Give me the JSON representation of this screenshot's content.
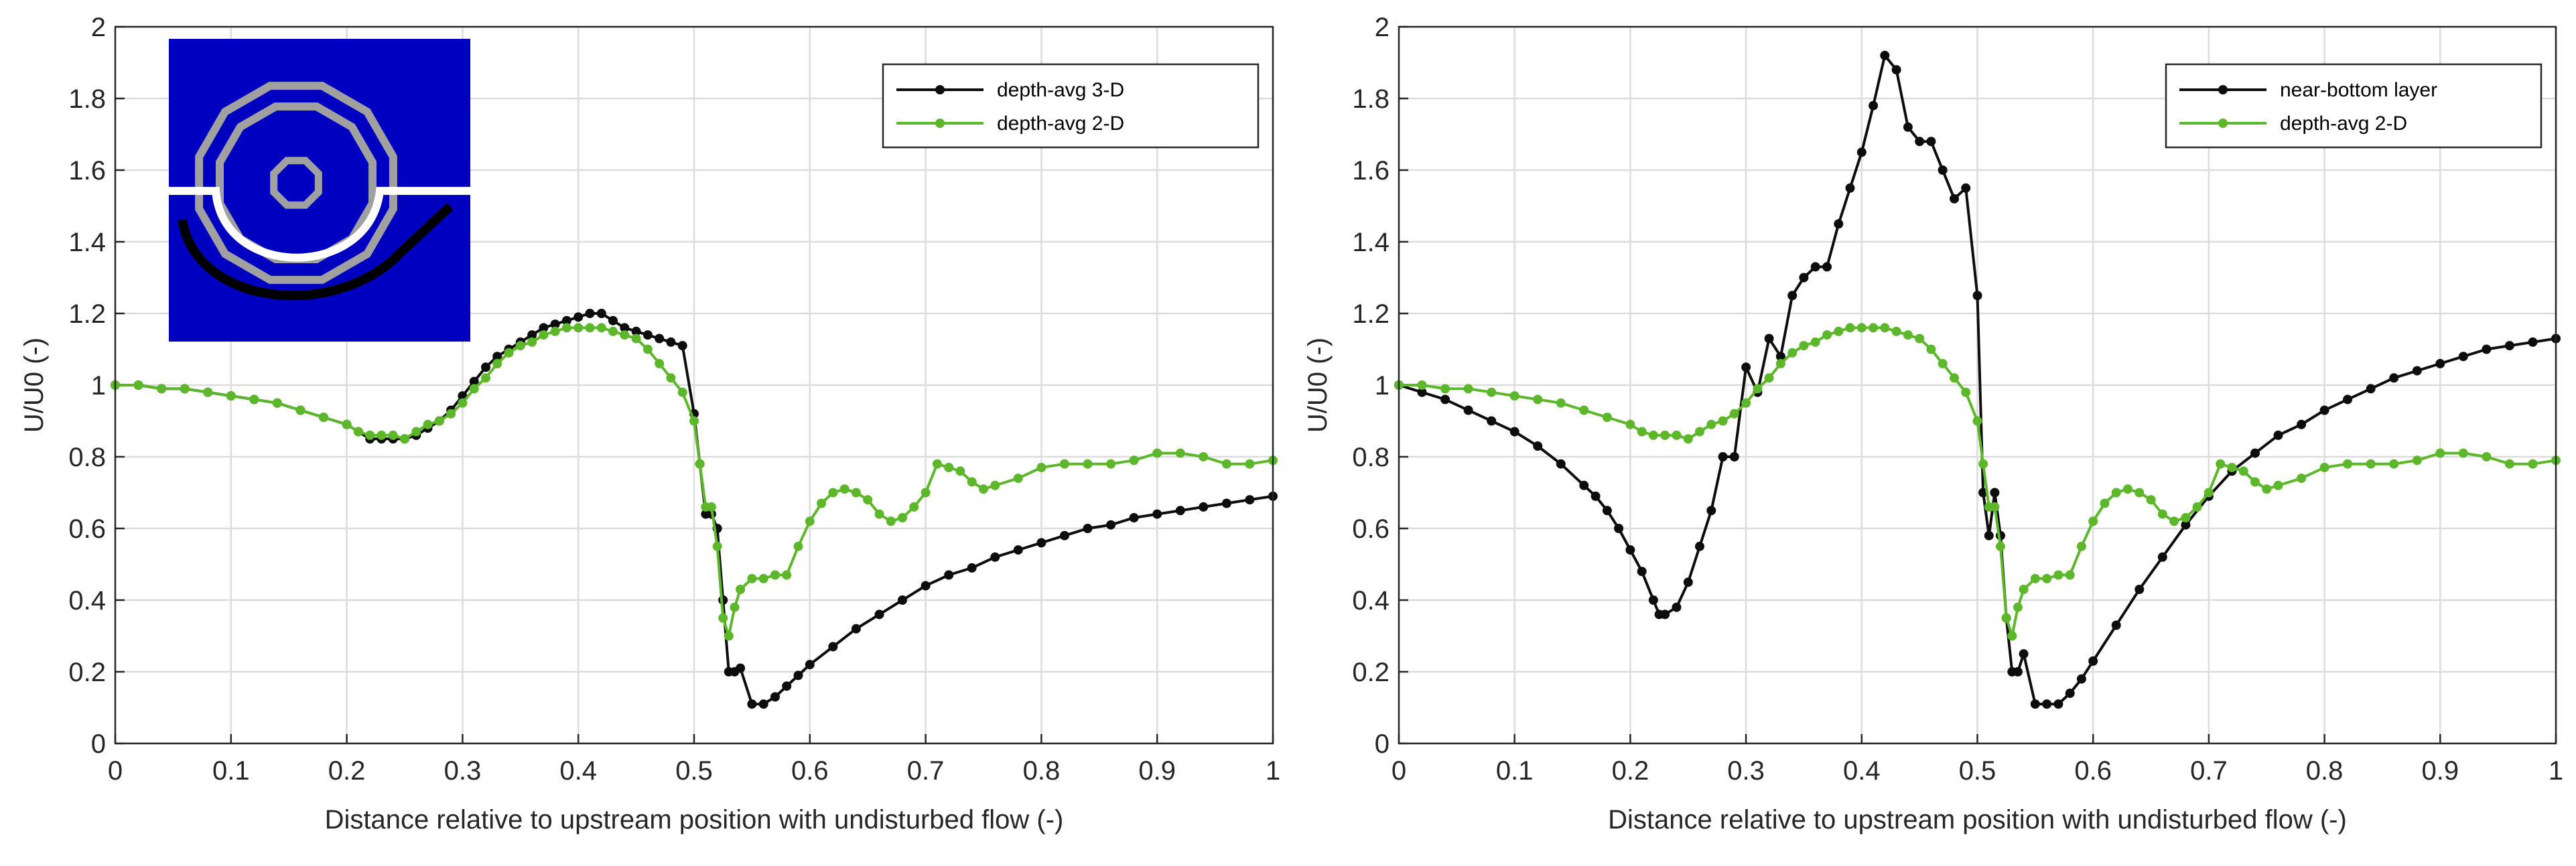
{
  "colors": {
    "black": "#0d0d0d",
    "green": "#5cb82a",
    "inset_bg": "#0000c0",
    "inset_gray": "#a0a0a0",
    "inset_white": "#ffffff",
    "inset_black": "#000000"
  },
  "chart_data": [
    {
      "type": "line",
      "title": "",
      "xlabel": "Distance relative to upstream position with undisturbed flow (-)",
      "ylabel": "U/U0 (-)",
      "xlim": [
        0,
        1
      ],
      "ylim": [
        0,
        2
      ],
      "xticks": [
        "0",
        "0.1",
        "0.2",
        "0.3",
        "0.4",
        "0.5",
        "0.6",
        "0.7",
        "0.8",
        "0.9",
        "1"
      ],
      "yticks": [
        "0",
        "0.2",
        "0.4",
        "0.6",
        "0.8",
        "1",
        "1.2",
        "1.4",
        "1.6",
        "1.8",
        "2"
      ],
      "grid": true,
      "legend_position": "top-right",
      "has_inset": true,
      "series": [
        {
          "name": "depth-avg 3-D",
          "color": "#0d0d0d",
          "x": [
            0,
            0.02,
            0.04,
            0.06,
            0.08,
            0.1,
            0.12,
            0.14,
            0.16,
            0.18,
            0.2,
            0.21,
            0.22,
            0.23,
            0.24,
            0.25,
            0.26,
            0.27,
            0.28,
            0.29,
            0.3,
            0.31,
            0.32,
            0.33,
            0.34,
            0.35,
            0.36,
            0.37,
            0.38,
            0.39,
            0.4,
            0.41,
            0.42,
            0.43,
            0.44,
            0.45,
            0.46,
            0.47,
            0.48,
            0.49,
            0.5,
            0.505,
            0.51,
            0.515,
            0.52,
            0.525,
            0.53,
            0.535,
            0.54,
            0.55,
            0.56,
            0.57,
            0.58,
            0.59,
            0.6,
            0.62,
            0.64,
            0.66,
            0.68,
            0.7,
            0.72,
            0.74,
            0.76,
            0.78,
            0.8,
            0.82,
            0.84,
            0.86,
            0.88,
            0.9,
            0.92,
            0.94,
            0.96,
            0.98,
            1.0
          ],
          "y": [
            1.0,
            1.0,
            0.99,
            0.99,
            0.98,
            0.97,
            0.96,
            0.95,
            0.93,
            0.91,
            0.89,
            0.87,
            0.85,
            0.85,
            0.85,
            0.85,
            0.86,
            0.88,
            0.9,
            0.93,
            0.97,
            1.01,
            1.05,
            1.08,
            1.1,
            1.12,
            1.14,
            1.16,
            1.17,
            1.18,
            1.19,
            1.2,
            1.2,
            1.18,
            1.16,
            1.15,
            1.14,
            1.13,
            1.12,
            1.11,
            0.92,
            0.78,
            0.64,
            0.64,
            0.6,
            0.4,
            0.2,
            0.2,
            0.21,
            0.11,
            0.11,
            0.13,
            0.16,
            0.19,
            0.22,
            0.27,
            0.32,
            0.36,
            0.4,
            0.44,
            0.47,
            0.49,
            0.52,
            0.54,
            0.56,
            0.58,
            0.6,
            0.61,
            0.63,
            0.64,
            0.65,
            0.66,
            0.67,
            0.68,
            0.69
          ]
        },
        {
          "name": "depth-avg 2-D",
          "color": "#5cb82a",
          "x": [
            0,
            0.02,
            0.04,
            0.06,
            0.08,
            0.1,
            0.12,
            0.14,
            0.16,
            0.18,
            0.2,
            0.21,
            0.22,
            0.23,
            0.24,
            0.25,
            0.26,
            0.27,
            0.28,
            0.29,
            0.3,
            0.31,
            0.32,
            0.33,
            0.34,
            0.35,
            0.36,
            0.37,
            0.38,
            0.39,
            0.4,
            0.41,
            0.42,
            0.43,
            0.44,
            0.45,
            0.46,
            0.47,
            0.48,
            0.49,
            0.5,
            0.505,
            0.51,
            0.515,
            0.52,
            0.525,
            0.53,
            0.535,
            0.54,
            0.55,
            0.56,
            0.57,
            0.58,
            0.59,
            0.6,
            0.61,
            0.62,
            0.63,
            0.64,
            0.65,
            0.66,
            0.67,
            0.68,
            0.69,
            0.7,
            0.71,
            0.72,
            0.73,
            0.74,
            0.75,
            0.76,
            0.78,
            0.8,
            0.82,
            0.84,
            0.86,
            0.88,
            0.9,
            0.92,
            0.94,
            0.96,
            0.98,
            1.0
          ],
          "y": [
            1.0,
            1.0,
            0.99,
            0.99,
            0.98,
            0.97,
            0.96,
            0.95,
            0.93,
            0.91,
            0.89,
            0.87,
            0.86,
            0.86,
            0.86,
            0.85,
            0.87,
            0.89,
            0.9,
            0.92,
            0.95,
            0.99,
            1.02,
            1.06,
            1.09,
            1.11,
            1.12,
            1.14,
            1.15,
            1.16,
            1.16,
            1.16,
            1.16,
            1.15,
            1.14,
            1.13,
            1.1,
            1.06,
            1.02,
            0.98,
            0.9,
            0.78,
            0.66,
            0.66,
            0.55,
            0.35,
            0.3,
            0.38,
            0.43,
            0.46,
            0.46,
            0.47,
            0.47,
            0.55,
            0.62,
            0.67,
            0.7,
            0.71,
            0.7,
            0.68,
            0.64,
            0.62,
            0.63,
            0.66,
            0.7,
            0.78,
            0.77,
            0.76,
            0.73,
            0.71,
            0.72,
            0.74,
            0.77,
            0.78,
            0.78,
            0.78,
            0.79,
            0.81,
            0.81,
            0.8,
            0.78,
            0.78,
            0.79
          ]
        }
      ]
    },
    {
      "type": "line",
      "title": "",
      "xlabel": "Distance relative to upstream position with undisturbed flow (-)",
      "ylabel": "U/U0 (-)",
      "xlim": [
        0,
        1
      ],
      "ylim": [
        0,
        2
      ],
      "xticks": [
        "0",
        "0.1",
        "0.2",
        "0.3",
        "0.4",
        "0.5",
        "0.6",
        "0.7",
        "0.8",
        "0.9",
        "1"
      ],
      "yticks": [
        "0",
        "0.2",
        "0.4",
        "0.6",
        "0.8",
        "1",
        "1.2",
        "1.4",
        "1.6",
        "1.8",
        "2"
      ],
      "grid": true,
      "legend_position": "top-right",
      "has_inset": false,
      "series": [
        {
          "name": "near-bottom layer",
          "color": "#0d0d0d",
          "x": [
            0,
            0.02,
            0.04,
            0.06,
            0.08,
            0.1,
            0.12,
            0.14,
            0.16,
            0.17,
            0.18,
            0.19,
            0.2,
            0.21,
            0.22,
            0.225,
            0.23,
            0.24,
            0.25,
            0.26,
            0.27,
            0.28,
            0.29,
            0.3,
            0.31,
            0.32,
            0.33,
            0.34,
            0.35,
            0.36,
            0.37,
            0.38,
            0.39,
            0.4,
            0.41,
            0.42,
            0.43,
            0.44,
            0.45,
            0.46,
            0.47,
            0.48,
            0.49,
            0.5,
            0.505,
            0.51,
            0.515,
            0.52,
            0.525,
            0.53,
            0.535,
            0.54,
            0.55,
            0.56,
            0.57,
            0.58,
            0.59,
            0.6,
            0.62,
            0.64,
            0.66,
            0.68,
            0.7,
            0.72,
            0.74,
            0.76,
            0.78,
            0.8,
            0.82,
            0.84,
            0.86,
            0.88,
            0.9,
            0.92,
            0.94,
            0.96,
            0.98,
            1.0
          ],
          "y": [
            1.0,
            0.98,
            0.96,
            0.93,
            0.9,
            0.87,
            0.83,
            0.78,
            0.72,
            0.69,
            0.65,
            0.6,
            0.54,
            0.48,
            0.4,
            0.36,
            0.36,
            0.38,
            0.45,
            0.55,
            0.65,
            0.8,
            0.8,
            1.05,
            0.98,
            1.13,
            1.08,
            1.25,
            1.3,
            1.33,
            1.33,
            1.45,
            1.55,
            1.65,
            1.78,
            1.92,
            1.88,
            1.72,
            1.68,
            1.68,
            1.6,
            1.52,
            1.55,
            1.25,
            0.7,
            0.58,
            0.7,
            0.58,
            0.35,
            0.2,
            0.2,
            0.25,
            0.11,
            0.11,
            0.11,
            0.14,
            0.18,
            0.23,
            0.33,
            0.43,
            0.52,
            0.61,
            0.69,
            0.76,
            0.81,
            0.86,
            0.89,
            0.93,
            0.96,
            0.99,
            1.02,
            1.04,
            1.06,
            1.08,
            1.1,
            1.11,
            1.12,
            1.13
          ]
        },
        {
          "name": "depth-avg 2-D",
          "color": "#5cb82a",
          "x": [
            0,
            0.02,
            0.04,
            0.06,
            0.08,
            0.1,
            0.12,
            0.14,
            0.16,
            0.18,
            0.2,
            0.21,
            0.22,
            0.23,
            0.24,
            0.25,
            0.26,
            0.27,
            0.28,
            0.29,
            0.3,
            0.31,
            0.32,
            0.33,
            0.34,
            0.35,
            0.36,
            0.37,
            0.38,
            0.39,
            0.4,
            0.41,
            0.42,
            0.43,
            0.44,
            0.45,
            0.46,
            0.47,
            0.48,
            0.49,
            0.5,
            0.505,
            0.51,
            0.515,
            0.52,
            0.525,
            0.53,
            0.535,
            0.54,
            0.55,
            0.56,
            0.57,
            0.58,
            0.59,
            0.6,
            0.61,
            0.62,
            0.63,
            0.64,
            0.65,
            0.66,
            0.67,
            0.68,
            0.69,
            0.7,
            0.71,
            0.72,
            0.73,
            0.74,
            0.75,
            0.76,
            0.78,
            0.8,
            0.82,
            0.84,
            0.86,
            0.88,
            0.9,
            0.92,
            0.94,
            0.96,
            0.98,
            1.0
          ],
          "y": [
            1.0,
            1.0,
            0.99,
            0.99,
            0.98,
            0.97,
            0.96,
            0.95,
            0.93,
            0.91,
            0.89,
            0.87,
            0.86,
            0.86,
            0.86,
            0.85,
            0.87,
            0.89,
            0.9,
            0.92,
            0.95,
            0.99,
            1.02,
            1.06,
            1.09,
            1.11,
            1.12,
            1.14,
            1.15,
            1.16,
            1.16,
            1.16,
            1.16,
            1.15,
            1.14,
            1.13,
            1.1,
            1.06,
            1.02,
            0.98,
            0.9,
            0.78,
            0.66,
            0.66,
            0.55,
            0.35,
            0.3,
            0.38,
            0.43,
            0.46,
            0.46,
            0.47,
            0.47,
            0.55,
            0.62,
            0.67,
            0.7,
            0.71,
            0.7,
            0.68,
            0.64,
            0.62,
            0.63,
            0.66,
            0.7,
            0.78,
            0.77,
            0.76,
            0.73,
            0.71,
            0.72,
            0.74,
            0.77,
            0.78,
            0.78,
            0.78,
            0.79,
            0.81,
            0.81,
            0.8,
            0.78,
            0.78,
            0.79
          ]
        }
      ]
    }
  ]
}
